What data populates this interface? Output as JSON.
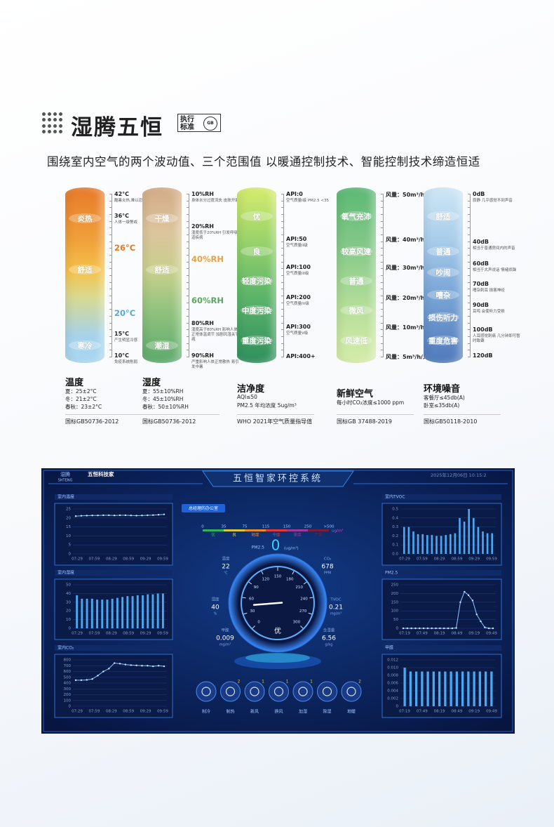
{
  "header": {
    "title": "湿腾五恒",
    "badge": "执行标准",
    "badge_logo": "GB",
    "subtitle": "围绕室内空气的两个波动值、三个范围值 以暖通控制技术、智能控制技术缔造恒适"
  },
  "columns": [
    {
      "zones": [
        "炎热",
        "舒适",
        "寒冷"
      ],
      "scale": [
        {
          "label": "42°C",
          "note": "酷暑炎热,难以忍受"
        },
        {
          "label": "36°C",
          "note": "人体一级警戒"
        },
        {
          "label": "26°C",
          "color": "#e8781e"
        },
        {
          "label": "20°C",
          "color": "#5aa6d6"
        },
        {
          "label": "15°C",
          "note": "产生明显冷感"
        },
        {
          "label": "10°C",
          "note": "免疫系统削弱"
        }
      ],
      "title": "温度",
      "lines": [
        "夏：25±2°C",
        "冬：21±2°C",
        "春秋：23±2°C"
      ],
      "standard": "国标GB50736-2012"
    },
    {
      "zones": [
        "干燥",
        "舒适",
        "潮湿"
      ],
      "scale": [
        {
          "label": "10%RH",
          "note": "身体水分过度流失 皮肤开裂"
        },
        {
          "label": "20%RH",
          "note": "湿度低于20%RH 引发呼吸道疾病"
        },
        {
          "label": "40%RH",
          "color": "#e8a040"
        },
        {
          "label": "60%RH",
          "color": "#5aa860"
        },
        {
          "label": "80%RH",
          "note": "湿度高于80%RH 影响人体正常体温调节 加剧风湿关节病"
        },
        {
          "label": "90%RH",
          "note": "严重影响人体正常散热 易引发中暑"
        }
      ],
      "title": "湿度",
      "lines": [
        "夏：55±10%RH",
        "冬：45±10%RH",
        "春秋：50±10%RH"
      ],
      "standard": "国标GB50736-2012"
    },
    {
      "zones": [
        "优",
        "良",
        "轻度污染",
        "中度污染",
        "重度污染"
      ],
      "scale": [
        {
          "label": "API:0",
          "note": "空气质量I级 PM2.5 <35"
        },
        {
          "label": "API:50",
          "note": "空气质量II级"
        },
        {
          "label": "API:100",
          "note": "空气质量III级"
        },
        {
          "label": "API:200",
          "note": "空气质量IV级"
        },
        {
          "label": "API:300",
          "note": "空气质量V级"
        },
        {
          "label": "API:400+"
        }
      ],
      "title": "洁净度",
      "lines": [
        "AQI≤50",
        "PM2.5 年均浓度 5ug/m³"
      ],
      "standard": "WHO 2021年空气质量指导值"
    },
    {
      "zones": [
        "氧气充沛",
        "较高风速",
        "普通",
        "微风",
        "风速低"
      ],
      "scale": [
        {
          "label": "风量：50m³/h/人"
        },
        {
          "label": "风量：40m³/h/人"
        },
        {
          "label": "风量：30m³/h/人"
        },
        {
          "label": "风量：20m³/h/人"
        },
        {
          "label": "风量：10m³/h/人"
        },
        {
          "label": "风量：5m³/h/人"
        }
      ],
      "title": "新鲜空气",
      "lines": [
        "每小时CO₂浓度≤1000 ppm"
      ],
      "standard": "国标GB 37488-2019"
    },
    {
      "zones": [
        "舒适",
        "普通",
        "吵闹",
        "嘈杂",
        "损伤听力",
        "重度危害"
      ],
      "scale": [
        {
          "label": "0dB",
          "note": "寂静 几乎感觉不到声音"
        },
        {
          "label": "40dB",
          "note": "相当于普通房间内的声音"
        },
        {
          "label": "60dB",
          "note": "相当于大声说话 情绪烦躁"
        },
        {
          "label": "70dB",
          "note": "嘈杂刺耳 损害神经"
        },
        {
          "label": "90dB",
          "note": "耳鸣 会使听力受损"
        },
        {
          "label": "100dB",
          "note": "人耳感觉刺痛 几分钟即可暂时致聋"
        },
        {
          "label": "120dB"
        }
      ],
      "title": "环境噪音",
      "lines": [
        "客餐厅≤45db(A)",
        "卧室≤35db(A)"
      ],
      "standard": "国标GB50118-2010"
    }
  ],
  "dashboard": {
    "title": "五恒智家环控系统",
    "logo": "湿腾",
    "logo_en": "SHTENG",
    "brand": "五恒科技家",
    "datetime": "2025年12月06日 10:15:2",
    "room": "总经理的办公室",
    "aqi": {
      "breaks": [
        0,
        35,
        75,
        115,
        150,
        250,
        ">500"
      ],
      "levels": [
        "优",
        "良",
        "轻度",
        "中度",
        "重度",
        "严重"
      ],
      "unit": "ug/m³"
    },
    "pm25": {
      "label": "PM2.5",
      "value": 0,
      "unit": "(ug/m³)"
    },
    "gauge": {
      "ticks": [
        0,
        30,
        60,
        90,
        120,
        150,
        180,
        210,
        240,
        270,
        300
      ],
      "value": 45,
      "label": "优"
    },
    "readings": [
      {
        "name": "温度",
        "value": 22,
        "unit": "℃"
      },
      {
        "name": "CO₂",
        "value": 678,
        "unit": "PPM"
      },
      {
        "name": "湿度",
        "value": 40,
        "unit": "%"
      },
      {
        "name": "TVOC",
        "value": 0.21,
        "unit": "mg/m³"
      },
      {
        "name": "甲醛",
        "value": 0.009,
        "unit": "mg/m³"
      },
      {
        "name": "含湿量",
        "value": 6.56,
        "unit": "g/kg"
      }
    ],
    "buttons": [
      {
        "label": "制冷"
      },
      {
        "label": "制热",
        "badge": 2
      },
      {
        "label": "新风",
        "badge": 1
      },
      {
        "label": "换风",
        "badge": 1
      },
      {
        "label": "加湿",
        "badge": 1
      },
      {
        "label": "除湿"
      },
      {
        "label": "地暖",
        "badge": 2
      }
    ],
    "charts": [
      {
        "title": "室内温度",
        "type": "line",
        "ylim": [
          0,
          25
        ],
        "yticks": [
          0,
          5,
          10,
          15,
          20,
          25
        ],
        "xlabels": [
          "07:29",
          "07:59",
          "08:29",
          "08:59",
          "09:29",
          "09:59"
        ],
        "values": [
          21,
          21.2,
          21.3,
          21.4,
          21.4,
          21.5,
          21.5,
          21.4,
          21.5,
          21.5,
          21.4,
          21.3,
          21.4,
          21.5,
          21.6,
          21.8,
          22
        ]
      },
      {
        "title": "室内湿度",
        "type": "bar",
        "ylim": [
          0,
          50
        ],
        "yticks": [
          0,
          10,
          20,
          30,
          40,
          50
        ],
        "xlabels": [
          "07:29",
          "07:59",
          "08:29",
          "08:59",
          "09:29",
          "09:59"
        ],
        "values": [
          38,
          34,
          34,
          34,
          33,
          33,
          33,
          34,
          35,
          36,
          37,
          37,
          38,
          38,
          39,
          39,
          40,
          40
        ]
      },
      {
        "title": "室内CO₂",
        "type": "line",
        "ylim": [
          0,
          800
        ],
        "yticks": [
          0,
          100,
          200,
          300,
          400,
          500,
          600,
          700,
          800
        ],
        "xlabels": [
          "07:29",
          "07:59",
          "08:29",
          "08:59",
          "09:29",
          "09:59"
        ],
        "values": [
          450,
          450,
          455,
          470,
          530,
          600,
          650,
          745,
          735,
          720,
          710,
          705,
          700,
          700,
          690,
          700,
          690
        ]
      },
      {
        "title": "室内TVOC",
        "type": "bar",
        "ylim": [
          0,
          0.5
        ],
        "yticks": [
          {
            "value": 0,
            "label": "0.0"
          },
          0.1,
          0.2,
          0.3,
          0.4,
          0.5
        ],
        "xlabels": [
          "07:29",
          "07:59",
          "08:29",
          "08:59",
          "09:29",
          "09:59"
        ],
        "values": [
          0.3,
          0.3,
          0.25,
          0.22,
          0.22,
          0.21,
          0.21,
          0.2,
          0.2,
          0.21,
          0.22,
          0.23,
          0.4,
          0.36,
          0.5,
          0.4,
          0.3,
          0.25,
          0.23,
          0.23
        ]
      },
      {
        "title": "PM2.5",
        "type": "line",
        "ylim": [
          0,
          250
        ],
        "yticks": [
          0,
          50,
          100,
          150,
          200,
          250
        ],
        "xlabels": [
          "07:19",
          "07:49",
          "08:19",
          "08:49",
          "09:19",
          "09:49"
        ],
        "values": [
          0,
          0,
          0,
          0,
          0,
          0,
          0,
          0,
          0,
          0,
          0,
          0,
          0,
          2,
          150,
          210,
          190,
          160,
          80,
          40,
          5,
          0,
          0
        ]
      },
      {
        "title": "甲醛",
        "type": "bar",
        "ylim": [
          0,
          0.012
        ],
        "yticks": [
          0,
          0.002,
          0.004,
          0.006,
          0.008,
          {
            "value": 0.01,
            "label": "0.010"
          },
          0.012
        ],
        "xlabels": [
          "07:19",
          "07:49",
          "08:19",
          "08:49",
          "09:19",
          "09:49"
        ],
        "values": [
          0.01,
          0.009,
          0.009,
          0.009,
          0.009,
          0.009,
          0.009,
          0.009,
          0.009,
          0.009,
          0.009,
          0.009,
          0.009,
          0.009,
          0.009,
          0.009
        ]
      }
    ]
  }
}
